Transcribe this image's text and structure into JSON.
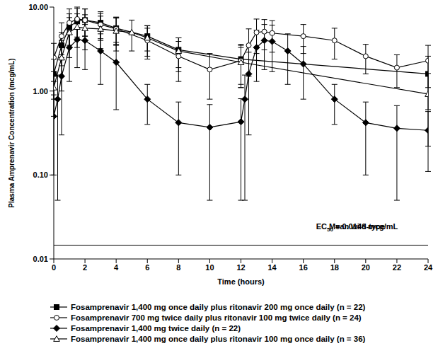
{
  "chart_data": {
    "type": "line",
    "x_label": "Time (hours)",
    "y_label": "Plasma Amprenavir Concentration (mcg/mL)",
    "log": "y",
    "xlim": [
      0,
      24
    ],
    "xticks": [
      0,
      2,
      4,
      6,
      8,
      10,
      12,
      14,
      16,
      18,
      20,
      22,
      24
    ],
    "ylim": [
      0.01,
      10
    ],
    "yticks": [
      0.01,
      {
        "value": 0.1,
        "label": "0.10"
      },
      {
        "value": 1,
        "label": "1.00"
      },
      {
        "value": 10,
        "label": "10.00"
      }
    ],
    "reference_line": {
      "value": 0.0146,
      "label_lines": [
        [
          "Mean wild-type"
        ],
        [
          "EC",
          "50",
          " = 0.0146 mcg/mL"
        ]
      ]
    },
    "series": [
      {
        "name": "Fosamprenavir 1,400 mg once daily plus ritonavir 200 mg once daily (n = 22)",
        "color": "#000000",
        "marker": "square",
        "x": [
          0,
          0.5,
          1,
          1.5,
          2,
          3,
          4,
          6,
          8,
          12,
          24
        ],
        "values": [
          1.6,
          3.5,
          5.8,
          6.8,
          7.0,
          6.5,
          5.6,
          4.5,
          3.1,
          2.4,
          1.6
        ],
        "sd": [
          0.8,
          1.5,
          2.5,
          2.8,
          2.5,
          2.3,
          2.0,
          1.5,
          1.2,
          1.2,
          1.0
        ]
      },
      {
        "name": "Fosamprenavir 700 mg twice daily plus ritonavir 100 mg twice daily (n = 24)",
        "color": "#000000",
        "marker": "circle_open",
        "x": [
          0,
          0.5,
          1,
          1.5,
          2,
          3,
          4,
          6,
          8,
          10,
          12,
          12.5,
          13,
          13.5,
          14,
          16,
          18,
          20,
          22,
          24
        ],
        "values": [
          2.5,
          4.5,
          6.5,
          7.2,
          7.0,
          6.2,
          5.5,
          4.0,
          2.6,
          1.8,
          2.3,
          3.5,
          5.0,
          5.1,
          4.9,
          4.5,
          4.0,
          2.6,
          1.9,
          2.3
        ],
        "sd": [
          1.2,
          2.0,
          3.0,
          2.8,
          2.5,
          2.2,
          2.0,
          1.6,
          1.3,
          1.0,
          1.2,
          2.0,
          2.2,
          2.0,
          2.0,
          1.7,
          1.6,
          1.0,
          0.8,
          1.2
        ]
      },
      {
        "name": "Fosamprenavir 1,400 mg twice daily (n = 22)",
        "color": "#000000",
        "marker": "diamond",
        "x": [
          0,
          0.25,
          0.5,
          1,
          1.5,
          2,
          3,
          4,
          6,
          8,
          10,
          12,
          12.25,
          12.5,
          13,
          13.5,
          14,
          15,
          16,
          18,
          20,
          22,
          24
        ],
        "values": [
          0.5,
          0.8,
          1.5,
          3.3,
          4.1,
          4.0,
          3.0,
          2.2,
          0.8,
          0.42,
          0.37,
          0.43,
          0.8,
          1.6,
          3.3,
          4.0,
          3.9,
          3.0,
          2.1,
          0.8,
          0.42,
          0.36,
          0.34
        ],
        "sd": [
          0.4,
          0.75,
          1.2,
          2.0,
          2.2,
          2.2,
          1.8,
          1.6,
          0.4,
          0.32,
          0.32,
          0.38,
          0.75,
          1.3,
          2.0,
          2.2,
          2.2,
          1.8,
          1.3,
          0.4,
          0.32,
          0.31,
          0.23
        ]
      },
      {
        "name": "Fosamprenavir 1,400 mg once daily plus ritonavir 100 mg once daily (n = 36)",
        "color": "#000000",
        "marker": "triangle_open",
        "x": [
          0,
          0.5,
          1,
          1.5,
          2,
          3,
          4,
          5,
          6,
          8,
          12,
          24
        ],
        "values": [
          1.1,
          2.5,
          5.0,
          5.8,
          5.6,
          5.5,
          5.2,
          5.0,
          4.3,
          3.0,
          2.2,
          0.92
        ],
        "sd": [
          0.6,
          1.5,
          2.5,
          2.5,
          2.5,
          2.3,
          2.2,
          2.0,
          1.7,
          1.3,
          1.1,
          0.7
        ]
      }
    ]
  }
}
